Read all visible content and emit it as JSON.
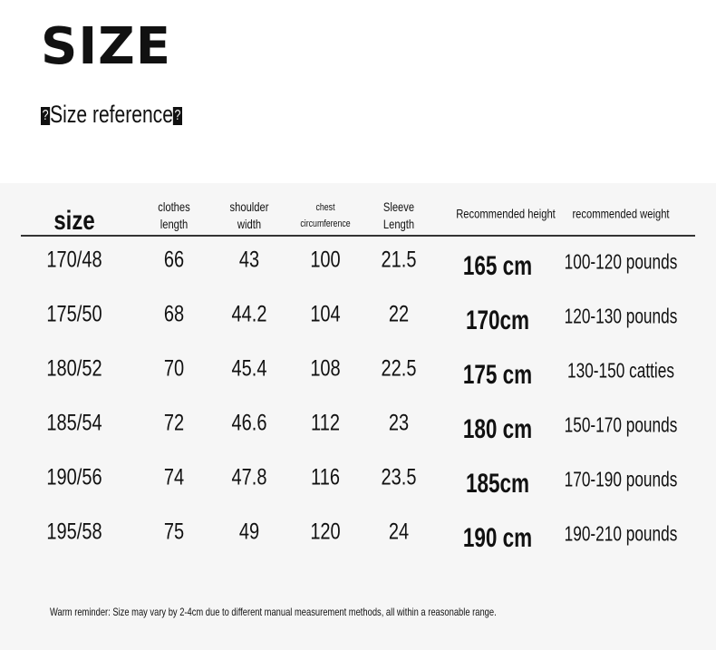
{
  "title": "SIZE",
  "subtitle": {
    "left_mark": "?",
    "text": "Size reference",
    "right_mark": "?"
  },
  "table": {
    "headers": [
      "size",
      [
        "clothes",
        "length"
      ],
      [
        "shoulder",
        "width"
      ],
      [
        "chest",
        "circumference"
      ],
      [
        "Sleeve",
        "Length"
      ],
      "Recommended height",
      "recommended weight"
    ],
    "rows": [
      [
        "170/48",
        "66",
        "43",
        "100",
        "21.5",
        "165 cm",
        "100-120 pounds"
      ],
      [
        "175/50",
        "68",
        "44.2",
        "104",
        "22",
        "170cm",
        "120-130 pounds"
      ],
      [
        "180/52",
        "70",
        "45.4",
        "108",
        "22.5",
        "175 cm",
        "130-150 catties"
      ],
      [
        "185/54",
        "72",
        "46.6",
        "112",
        "23",
        "180 cm",
        "150-170 pounds"
      ],
      [
        "190/56",
        "74",
        "47.8",
        "116",
        "23.5",
        "185cm",
        "170-190 pounds"
      ],
      [
        "195/58",
        "75",
        "49",
        "120",
        "24",
        "190 cm",
        "190-210 pounds"
      ]
    ]
  },
  "note": "Warm reminder: Size may vary by 2-4cm due to different manual measurement methods, all within a reasonable range."
}
